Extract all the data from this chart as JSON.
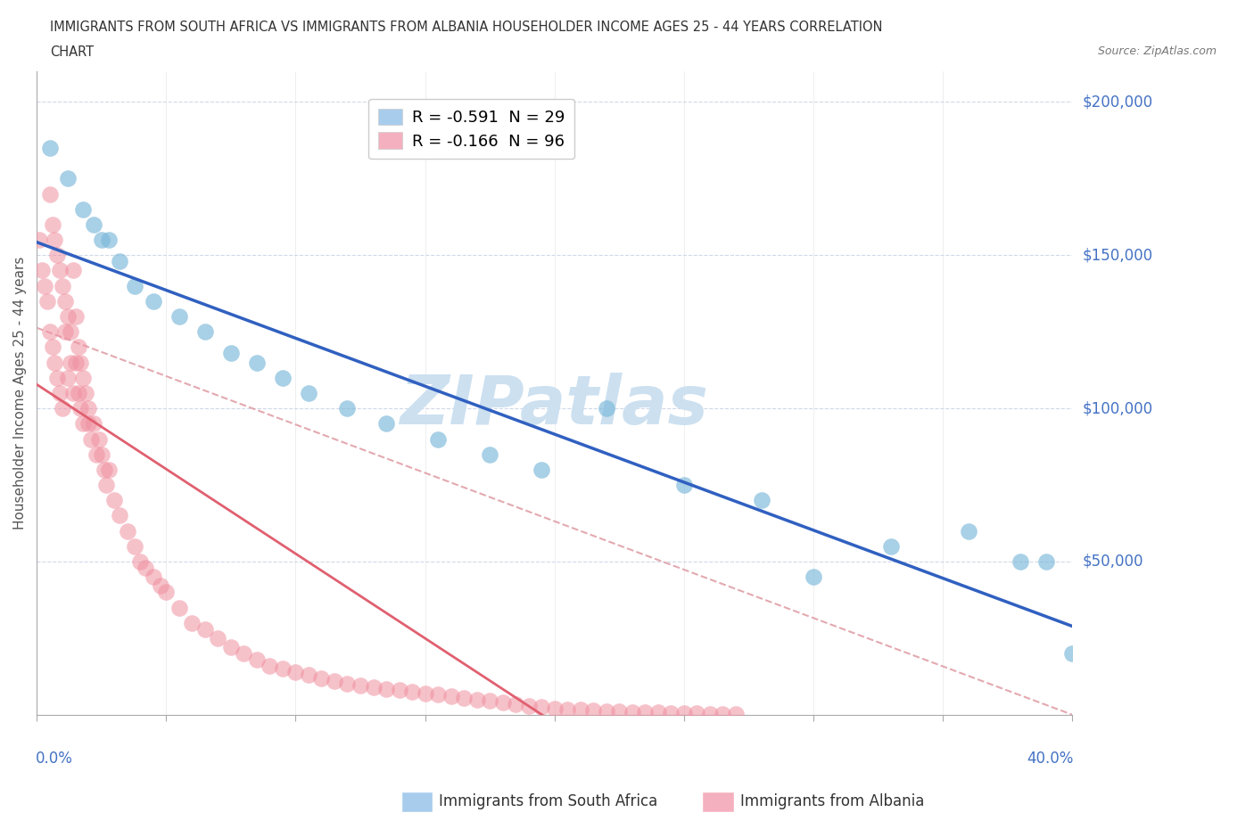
{
  "title_line1": "IMMIGRANTS FROM SOUTH AFRICA VS IMMIGRANTS FROM ALBANIA HOUSEHOLDER INCOME AGES 25 - 44 YEARS CORRELATION",
  "title_line2": "CHART",
  "source": "Source: ZipAtlas.com",
  "ylabel": "Householder Income Ages 25 - 44 years",
  "xmin": 0.0,
  "xmax": 0.4,
  "ymin": 0,
  "ymax": 210000,
  "ytick_vals": [
    50000,
    100000,
    150000,
    200000
  ],
  "ytick_labels": [
    "$50,000",
    "$100,000",
    "$150,000",
    "$200,000"
  ],
  "south_africa_color": "#7ab8d9",
  "albania_color": "#f090a0",
  "south_africa_line_color": "#3060c0",
  "albania_line_color": "#e06070",
  "dashed_line_color": "#e0a0a8",
  "background_color": "#ffffff",
  "watermark_color": "#cce0f0",
  "legend_label_sa": "R = -0.591  N = 29",
  "legend_label_alb": "R = -0.166  N = 96",
  "legend_color_sa": "#a8ccec",
  "legend_color_alb": "#f4b0be",
  "sa_x": [
    0.005,
    0.012,
    0.018,
    0.022,
    0.025,
    0.028,
    0.032,
    0.038,
    0.045,
    0.055,
    0.065,
    0.075,
    0.085,
    0.095,
    0.105,
    0.12,
    0.135,
    0.155,
    0.175,
    0.195,
    0.22,
    0.25,
    0.28,
    0.3,
    0.33,
    0.36,
    0.38,
    0.39,
    0.4
  ],
  "sa_y": [
    185000,
    175000,
    165000,
    160000,
    155000,
    155000,
    148000,
    140000,
    135000,
    130000,
    125000,
    118000,
    115000,
    110000,
    105000,
    100000,
    95000,
    90000,
    85000,
    80000,
    100000,
    75000,
    70000,
    45000,
    55000,
    60000,
    50000,
    50000,
    20000
  ],
  "alb_x": [
    0.001,
    0.002,
    0.003,
    0.004,
    0.005,
    0.005,
    0.006,
    0.006,
    0.007,
    0.007,
    0.008,
    0.008,
    0.009,
    0.009,
    0.01,
    0.01,
    0.011,
    0.011,
    0.012,
    0.012,
    0.013,
    0.013,
    0.014,
    0.014,
    0.015,
    0.015,
    0.016,
    0.016,
    0.017,
    0.017,
    0.018,
    0.018,
    0.019,
    0.02,
    0.02,
    0.021,
    0.022,
    0.023,
    0.024,
    0.025,
    0.026,
    0.027,
    0.028,
    0.03,
    0.032,
    0.035,
    0.038,
    0.04,
    0.042,
    0.045,
    0.048,
    0.05,
    0.055,
    0.06,
    0.065,
    0.07,
    0.075,
    0.08,
    0.085,
    0.09,
    0.095,
    0.1,
    0.105,
    0.11,
    0.115,
    0.12,
    0.125,
    0.13,
    0.135,
    0.14,
    0.145,
    0.15,
    0.155,
    0.16,
    0.165,
    0.17,
    0.175,
    0.18,
    0.185,
    0.19,
    0.195,
    0.2,
    0.205,
    0.21,
    0.215,
    0.22,
    0.225,
    0.23,
    0.235,
    0.24,
    0.245,
    0.25,
    0.255,
    0.26,
    0.265,
    0.27
  ],
  "alb_y": [
    155000,
    145000,
    140000,
    135000,
    170000,
    125000,
    160000,
    120000,
    155000,
    115000,
    150000,
    110000,
    145000,
    105000,
    140000,
    100000,
    135000,
    125000,
    130000,
    110000,
    125000,
    115000,
    145000,
    105000,
    130000,
    115000,
    120000,
    105000,
    115000,
    100000,
    110000,
    95000,
    105000,
    95000,
    100000,
    90000,
    95000,
    85000,
    90000,
    85000,
    80000,
    75000,
    80000,
    70000,
    65000,
    60000,
    55000,
    50000,
    48000,
    45000,
    42000,
    40000,
    35000,
    30000,
    28000,
    25000,
    22000,
    20000,
    18000,
    16000,
    15000,
    14000,
    13000,
    12000,
    11000,
    10000,
    9500,
    9000,
    8500,
    8000,
    7500,
    7000,
    6500,
    6000,
    5500,
    5000,
    4500,
    4000,
    3500,
    3000,
    2500,
    2000,
    1800,
    1600,
    1400,
    1200,
    1000,
    900,
    800,
    700,
    600,
    500,
    400,
    350,
    300,
    250
  ]
}
